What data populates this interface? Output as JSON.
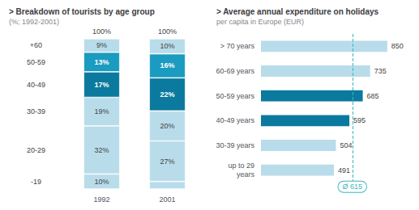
{
  "chart_data": [
    {
      "type": "bar",
      "stacked": true,
      "title": "> Breakdown of tourists by age group",
      "subtitle": "(%; 1992-2001)",
      "categories": [
        "1992",
        "2001"
      ],
      "series": [
        {
          "name": "-19",
          "color": "#b8dcea",
          "values": [
            10,
            5
          ],
          "value_labels": [
            "10%",
            null
          ]
        },
        {
          "name": "20-29",
          "color": "#b8dcea",
          "values": [
            32,
            27
          ],
          "value_labels": [
            "32%",
            "27%"
          ]
        },
        {
          "name": "30-39",
          "color": "#b8dcea",
          "values": [
            19,
            20
          ],
          "value_labels": [
            "19%",
            "20%"
          ]
        },
        {
          "name": "40-49",
          "color": "#0b7a9e",
          "values": [
            17,
            22
          ],
          "value_labels": [
            "17%",
            "22%"
          ]
        },
        {
          "name": "50-59",
          "color": "#1a9bbf",
          "values": [
            13,
            16
          ],
          "value_labels": [
            "13%",
            "16%"
          ]
        },
        {
          "name": "+60",
          "color": "#b8dcea",
          "values": [
            9,
            10
          ],
          "value_labels": [
            "9%",
            "10%"
          ]
        }
      ],
      "ylim": [
        0,
        100
      ],
      "data_labels": true,
      "tick_labels": "x",
      "grid": false,
      "annotations": [
        {
          "x": "1992",
          "text": "100%"
        },
        {
          "x": "2001",
          "text": "100%"
        }
      ]
    },
    {
      "type": "bar",
      "orientation": "horizontal",
      "title": "> Average annual expenditure on holidays",
      "subtitle": "per capita in Europe (EUR)",
      "categories": [
        "> 70 years",
        "60-69 years",
        "50-59 years",
        "40-49 years",
        "30-39 years",
        "up to 29\nyears"
      ],
      "values": [
        850,
        735,
        685,
        595,
        504,
        491
      ],
      "colors": [
        "#b8dcea",
        "#b8dcea",
        "#0b7a9e",
        "#0b7a9e",
        "#b8dcea",
        "#b8dcea"
      ],
      "xlim": [
        0,
        900
      ],
      "data_labels": true,
      "tick_labels": "y",
      "grid": false,
      "reference_line": {
        "value": 615,
        "label": "Ø 615",
        "color": "#3ab5c0"
      }
    }
  ]
}
